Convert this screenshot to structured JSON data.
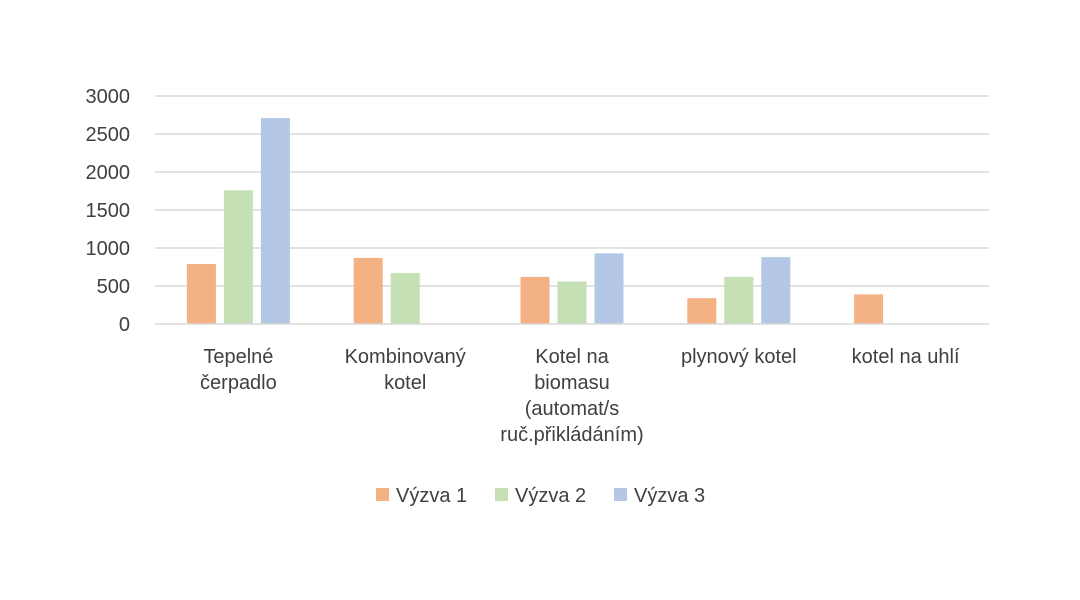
{
  "chart_data": {
    "type": "bar",
    "title": "",
    "xlabel": "",
    "ylabel": "",
    "ylim": [
      0,
      3000
    ],
    "yticks": [
      "0",
      "500",
      "1000",
      "1500",
      "2000",
      "2500",
      "3000"
    ],
    "grid": true,
    "legend_position": "bottom",
    "categories": [
      [
        "Tepelné",
        "čerpadlo"
      ],
      [
        "Kombinovaný",
        "kotel"
      ],
      [
        "Kotel na",
        "biomasu",
        "(automat/s",
        "ruč.přikládáním)"
      ],
      [
        "plynový kotel"
      ],
      [
        "kotel na uhlí"
      ]
    ],
    "series": [
      {
        "name": "Výzva 1",
        "color": "#F4B183",
        "values": [
          790,
          870,
          620,
          340,
          390
        ]
      },
      {
        "name": "Výzva 2",
        "color": "#C5E0B4",
        "values": [
          1760,
          670,
          560,
          620,
          null
        ]
      },
      {
        "name": "Výzva 3",
        "color": "#B4C7E7",
        "values": [
          2710,
          null,
          930,
          880,
          null
        ]
      }
    ]
  }
}
